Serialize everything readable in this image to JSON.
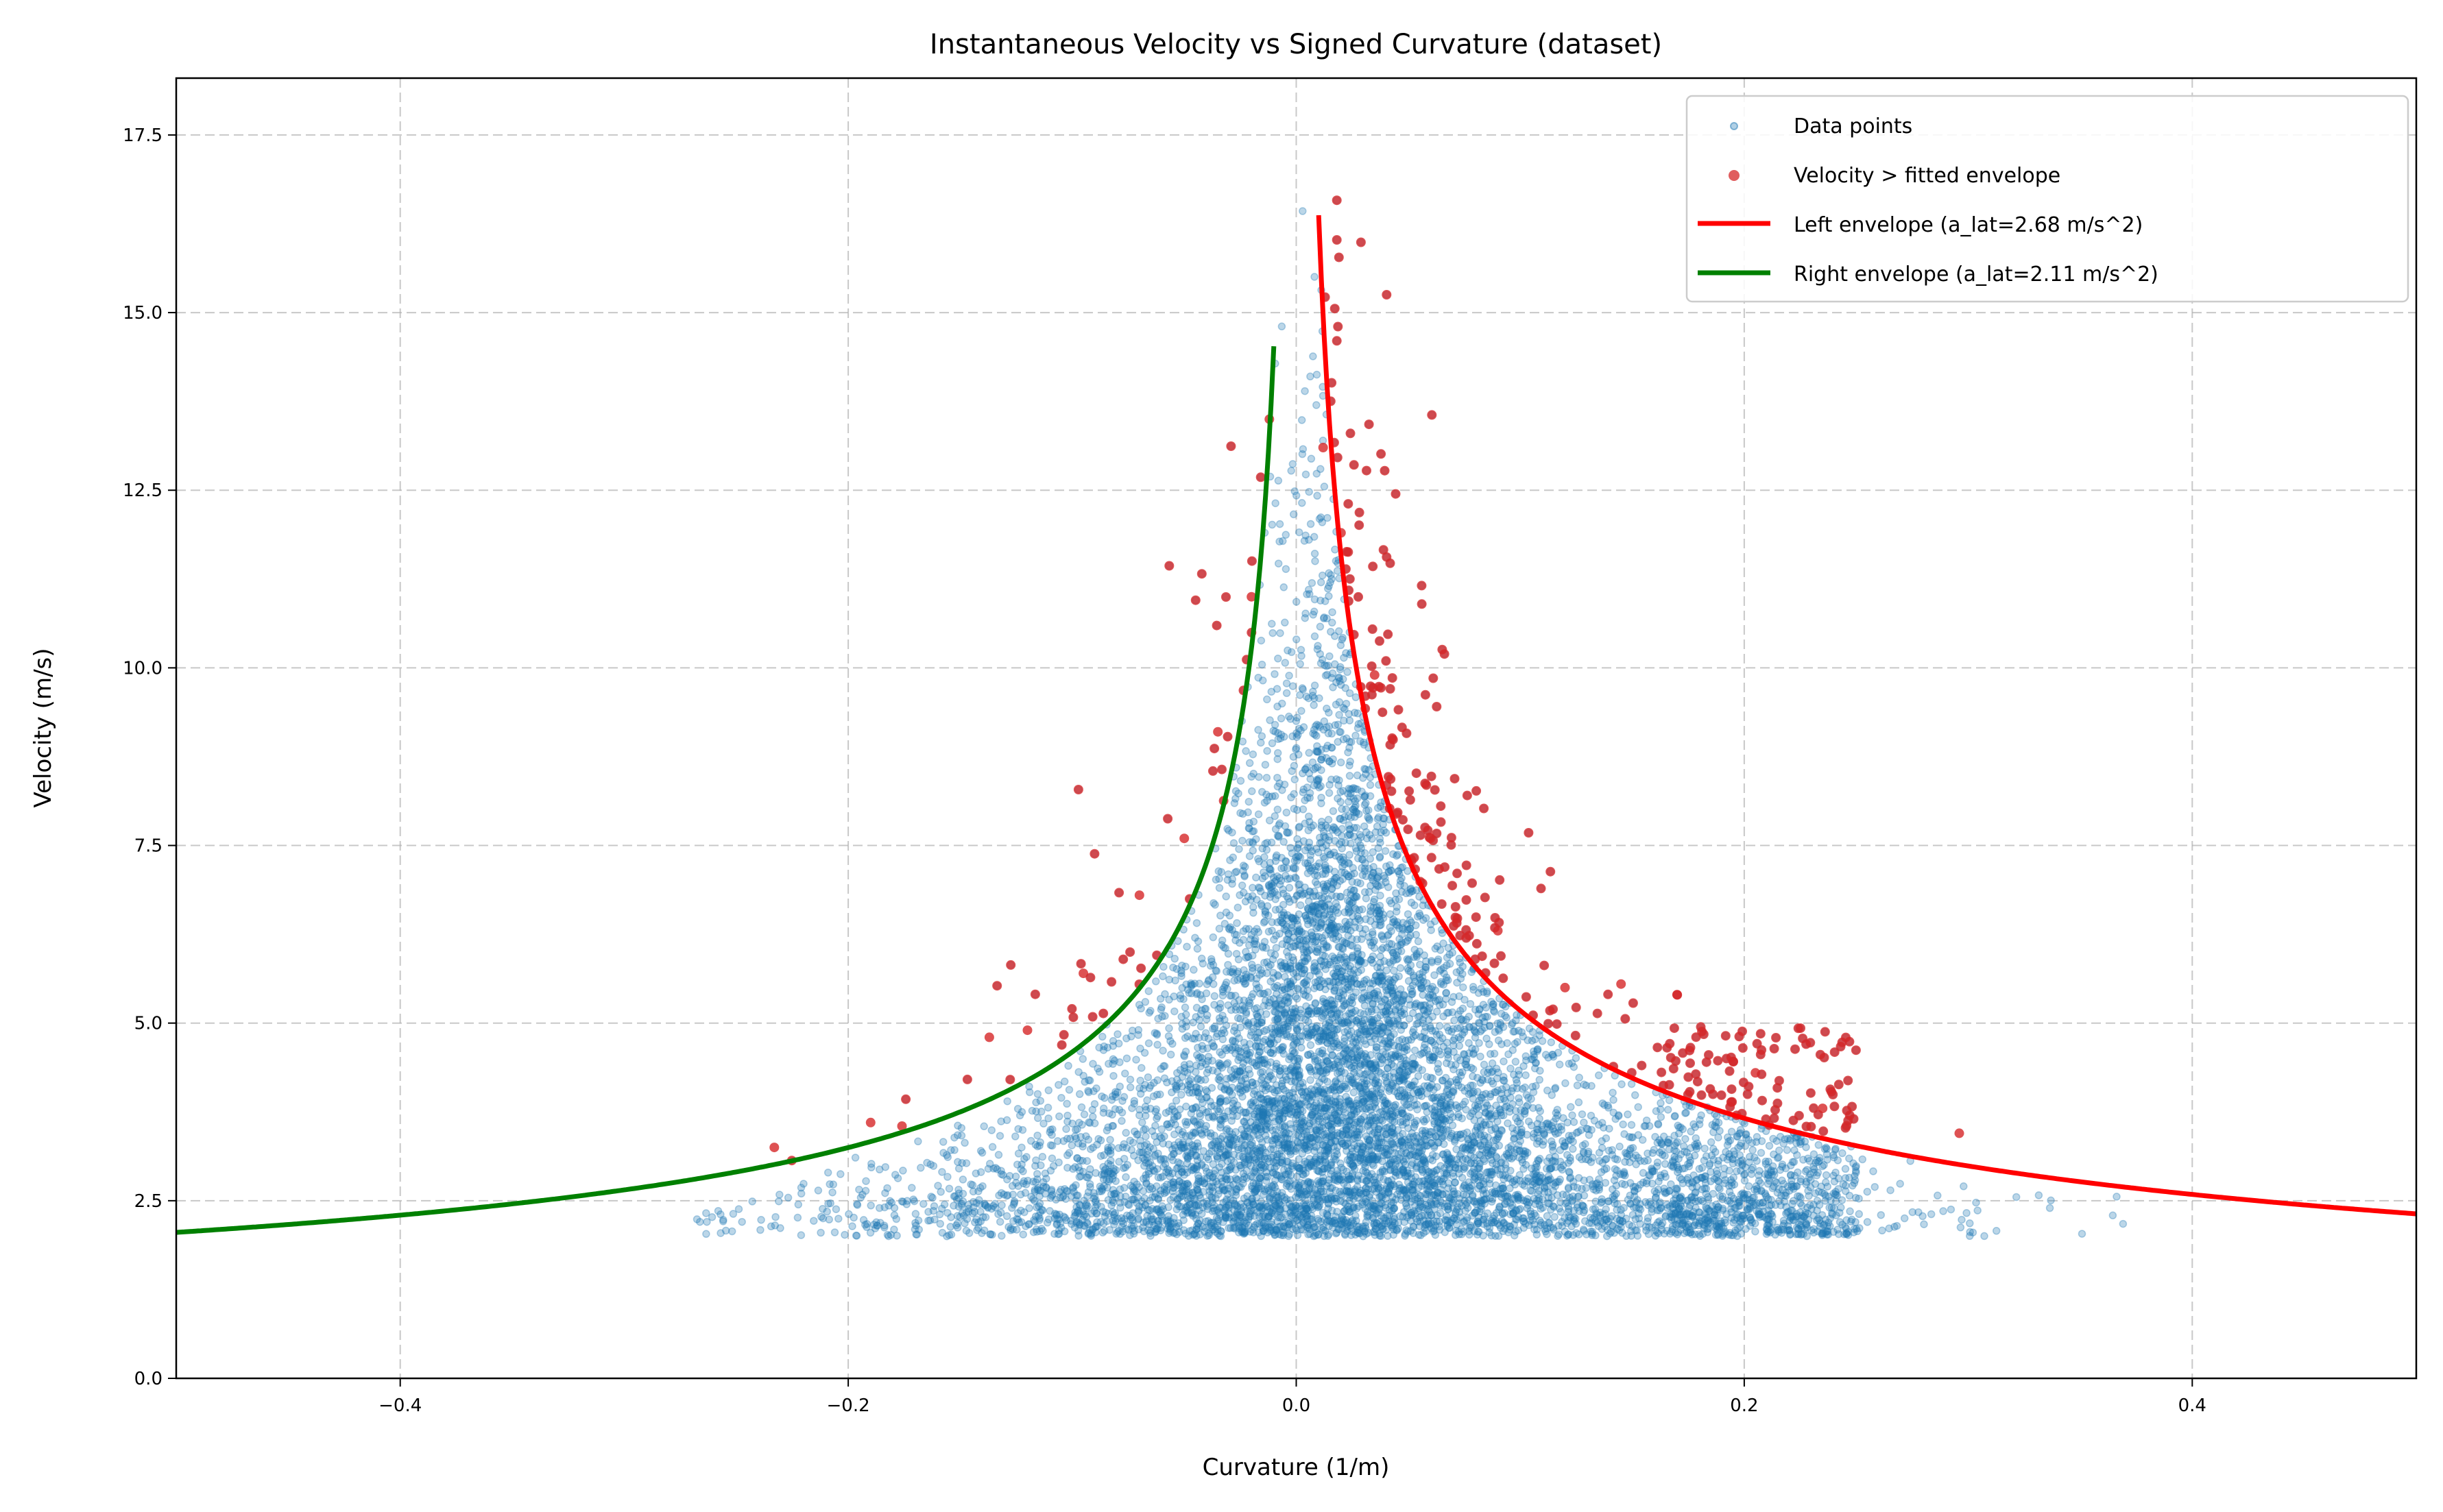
{
  "chart_data": {
    "type": "scatter",
    "title": "Instantaneous Velocity vs Signed Curvature (dataset)",
    "xlabel": "Curvature (1/m)",
    "ylabel": "Velocity (m/s)",
    "xlim": [
      -0.5,
      0.5
    ],
    "ylim": [
      0,
      18.3
    ],
    "xticks": [
      -0.4,
      -0.2,
      0.0,
      0.2,
      0.4
    ],
    "xtick_labels": [
      "−0.4",
      "−0.2",
      "0.0",
      "0.2",
      "0.4"
    ],
    "yticks": [
      0,
      2.5,
      5,
      7.5,
      10,
      12.5,
      15,
      17.5
    ],
    "ytick_labels": [
      "0.0",
      "2.5",
      "5.0",
      "7.5",
      "10.0",
      "12.5",
      "15.0",
      "17.5"
    ],
    "grid": true,
    "legend_position": "top-right",
    "series": [
      {
        "name": "Data points",
        "kind": "scatter",
        "color": "#1f77b4",
        "alpha": 0.35,
        "velocity_range": [
          2.0,
          16.6
        ],
        "curvature_range": [
          -0.26,
          0.37
        ]
      },
      {
        "name": "Velocity > fitted envelope",
        "kind": "scatter",
        "color": "#d62728",
        "alpha": 0.8,
        "sample_points": [
          [
            -0.233,
            3.25
          ],
          [
            -0.19,
            3.6
          ],
          [
            -0.176,
            3.55
          ],
          [
            -0.137,
            4.8
          ],
          [
            -0.12,
            4.9
          ],
          [
            -0.095,
            5.7
          ],
          [
            -0.07,
            6.8
          ],
          [
            -0.05,
            7.6
          ],
          [
            -0.035,
            9.1
          ],
          [
            -0.02,
            11.0
          ],
          [
            -0.012,
            13.5
          ],
          [
            0.012,
            13.1
          ],
          [
            0.02,
            11.9
          ],
          [
            0.035,
            9.9
          ],
          [
            0.06,
            7.6
          ],
          [
            0.09,
            6.3
          ],
          [
            0.12,
            5.5
          ],
          [
            0.145,
            5.55
          ],
          [
            0.17,
            5.4
          ],
          [
            0.205,
            4.3
          ],
          [
            0.235,
            3.8
          ],
          [
            0.296,
            3.45
          ]
        ]
      },
      {
        "name": "Left envelope (a_lat=2.68 m/s^2)",
        "kind": "line",
        "color": "#ff0000",
        "a_lat": 2.68,
        "curvature_range": [
          0.01,
          0.5
        ]
      },
      {
        "name": "Right envelope (a_lat=2.11 m/s^2)",
        "kind": "line",
        "color": "#008000",
        "a_lat": 2.11,
        "curvature_range": [
          -0.5,
          -0.01
        ]
      }
    ]
  }
}
